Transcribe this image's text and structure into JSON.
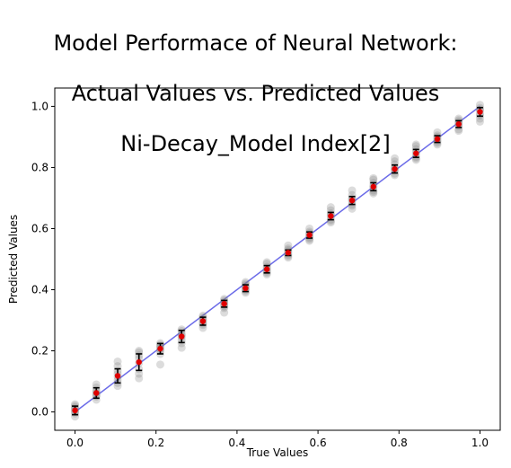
{
  "chart_data": {
    "type": "scatter",
    "title_lines": [
      "Model Performace of Neural Network:",
      "Actual Values vs. Predicted Values",
      "Ni-Decay_Model Index[2]"
    ],
    "xlabel": "True Values",
    "ylabel": "Predicted Values",
    "xlim": [
      -0.05,
      1.05
    ],
    "ylim": [
      -0.06,
      1.06
    ],
    "xticks": [
      0.0,
      0.2,
      0.4,
      0.6,
      0.8,
      1.0
    ],
    "yticks": [
      0.0,
      0.2,
      0.4,
      0.6,
      0.8,
      1.0
    ],
    "xtick_labels": [
      "0.0",
      "0.2",
      "0.4",
      "0.6",
      "0.8",
      "1.0"
    ],
    "ytick_labels": [
      "0.0",
      "0.2",
      "0.4",
      "0.6",
      "0.8",
      "1.0"
    ],
    "grid": false,
    "ideal_line": {
      "x": [
        0,
        1
      ],
      "y": [
        0,
        1
      ],
      "color": "#6b6be8"
    },
    "colors": {
      "samples": "#808080",
      "mean": "#e00000",
      "errorbar": "#000000"
    },
    "series": [
      {
        "x": [
          0.0,
          0.0526,
          0.1053,
          0.1579,
          0.2105,
          0.2632,
          0.3158,
          0.3684,
          0.4211,
          0.4737,
          0.5263,
          0.5789,
          0.6316,
          0.6842,
          0.7368,
          0.7895,
          0.8421,
          0.8947,
          0.9474,
          1.0
        ],
        "mean": [
          0.005,
          0.062,
          0.118,
          0.163,
          0.207,
          0.247,
          0.297,
          0.354,
          0.405,
          0.467,
          0.521,
          0.579,
          0.641,
          0.692,
          0.737,
          0.795,
          0.846,
          0.893,
          0.942,
          0.982
        ],
        "std": [
          0.014,
          0.017,
          0.023,
          0.027,
          0.017,
          0.02,
          0.013,
          0.011,
          0.011,
          0.012,
          0.009,
          0.01,
          0.012,
          0.013,
          0.013,
          0.013,
          0.013,
          0.011,
          0.011,
          0.014
        ],
        "samples": [
          [
            -0.015,
            -0.005,
            0.0,
            0.005,
            0.01,
            0.015,
            0.02,
            0.025
          ],
          [
            0.04,
            0.05,
            0.055,
            0.06,
            0.065,
            0.07,
            0.08,
            0.09
          ],
          [
            0.085,
            0.095,
            0.105,
            0.115,
            0.125,
            0.135,
            0.15,
            0.165
          ],
          [
            0.11,
            0.125,
            0.14,
            0.16,
            0.175,
            0.185,
            0.195,
            0.2
          ],
          [
            0.155,
            0.19,
            0.2,
            0.205,
            0.21,
            0.215,
            0.22,
            0.225
          ],
          [
            0.21,
            0.225,
            0.235,
            0.245,
            0.25,
            0.255,
            0.265,
            0.27
          ],
          [
            0.275,
            0.285,
            0.29,
            0.295,
            0.3,
            0.305,
            0.31,
            0.315
          ],
          [
            0.325,
            0.34,
            0.345,
            0.35,
            0.355,
            0.36,
            0.365,
            0.37
          ],
          [
            0.39,
            0.395,
            0.4,
            0.405,
            0.41,
            0.415,
            0.42,
            0.425
          ],
          [
            0.45,
            0.455,
            0.46,
            0.465,
            0.47,
            0.475,
            0.485,
            0.49
          ],
          [
            0.505,
            0.51,
            0.515,
            0.52,
            0.525,
            0.53,
            0.535,
            0.545
          ],
          [
            0.56,
            0.565,
            0.57,
            0.575,
            0.58,
            0.585,
            0.59,
            0.6
          ],
          [
            0.62,
            0.625,
            0.63,
            0.64,
            0.645,
            0.65,
            0.66,
            0.67
          ],
          [
            0.665,
            0.675,
            0.68,
            0.69,
            0.695,
            0.7,
            0.71,
            0.725
          ],
          [
            0.715,
            0.72,
            0.725,
            0.735,
            0.74,
            0.75,
            0.76,
            0.765
          ],
          [
            0.775,
            0.78,
            0.79,
            0.795,
            0.8,
            0.81,
            0.82,
            0.83
          ],
          [
            0.825,
            0.83,
            0.835,
            0.845,
            0.85,
            0.86,
            0.87,
            0.875
          ],
          [
            0.875,
            0.88,
            0.885,
            0.89,
            0.895,
            0.9,
            0.905,
            0.915
          ],
          [
            0.92,
            0.925,
            0.935,
            0.94,
            0.945,
            0.95,
            0.955,
            0.96
          ],
          [
            0.95,
            0.96,
            0.97,
            0.975,
            0.985,
            0.99,
            0.995,
            1.005
          ]
        ]
      }
    ]
  }
}
